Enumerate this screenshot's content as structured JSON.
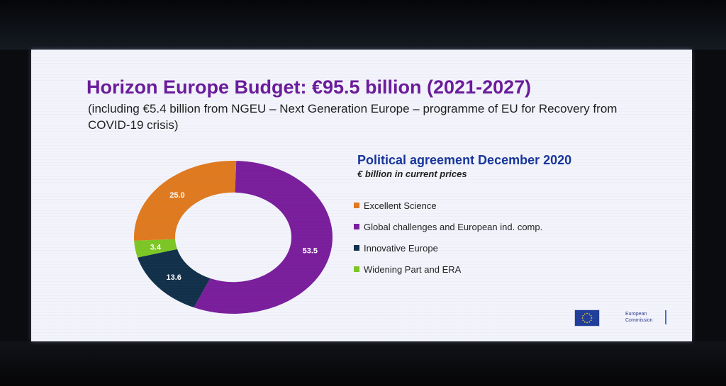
{
  "slide": {
    "title": "Horizon Europe Budget: €95.5 billion (2021-2027)",
    "subtitle": "(including €5.4 billion from NGEU – Next Generation Europe – programme of EU for Recovery from COVID-19 crisis)",
    "agreement_heading": "Political agreement December 2020",
    "units_note": "€ billion in current prices",
    "logo": {
      "icon": "eu-flag-icon",
      "line1": "European",
      "line2": "Commission"
    }
  },
  "chart_data": {
    "type": "pie",
    "variant": "donut",
    "title": "Political agreement December 2020",
    "units": "€ billion in current prices",
    "categories": [
      "Excellent Science",
      "Global challenges and European ind. comp.",
      "Innovative Europe",
      "Widening Part and ERA"
    ],
    "values": [
      25.0,
      53.5,
      13.6,
      3.4
    ],
    "value_labels": [
      "25.0",
      "53.5",
      "13.6",
      "3.4"
    ],
    "colors": [
      "#e07a1f",
      "#7a1e9c",
      "#12304a",
      "#7cc724"
    ],
    "start_category": "Excellent Science",
    "slice_order": [
      "Global challenges and European ind. comp.",
      "Innovative Europe",
      "Widening Part and ERA",
      "Excellent Science"
    ],
    "legend_position": "right"
  }
}
